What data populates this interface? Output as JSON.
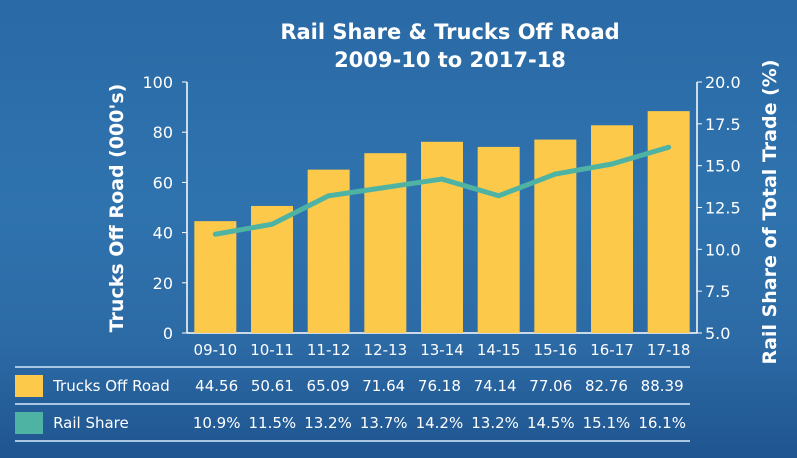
{
  "chart_data": {
    "type": "bar+line",
    "title": [
      "Rail Share & Trucks Off Road",
      "2009-10 to 2017-18"
    ],
    "categories": [
      "09-10",
      "10-11",
      "11-12",
      "12-13",
      "13-14",
      "14-15",
      "15-16",
      "16-17",
      "17-18"
    ],
    "series": [
      {
        "name": "Trucks Off Road",
        "type": "bar",
        "axis": "left",
        "values": [
          44.56,
          50.61,
          65.09,
          71.64,
          76.18,
          74.14,
          77.06,
          82.76,
          88.39
        ],
        "labels": [
          "44.56",
          "50.61",
          "65.09",
          "71.64",
          "76.18",
          "74.14",
          "77.06",
          "82.76",
          "88.39"
        ],
        "color": "#fdc94a"
      },
      {
        "name": "Rail Share",
        "type": "line",
        "axis": "right",
        "values": [
          10.9,
          11.5,
          13.2,
          13.7,
          14.2,
          13.2,
          14.5,
          15.1,
          16.1
        ],
        "labels": [
          "10.9%",
          "11.5%",
          "13.2%",
          "13.7%",
          "14.2%",
          "13.2%",
          "14.5%",
          "15.1%",
          "16.1%"
        ],
        "color": "#4fb3a4"
      }
    ],
    "ylabel": "Trucks Off Road (000's)",
    "ylabel_right": "Rail Share of Total Trade (%)",
    "ylim": [
      0,
      100
    ],
    "yticks": [
      "0",
      "20",
      "40",
      "60",
      "80",
      "100"
    ],
    "ylim_right": [
      5,
      20
    ],
    "yticks_right": [
      "5.0",
      "7.5",
      "10.0",
      "12.5",
      "15.0",
      "17.5",
      "20.0"
    ],
    "grid": false,
    "legend": "data table below chart"
  }
}
